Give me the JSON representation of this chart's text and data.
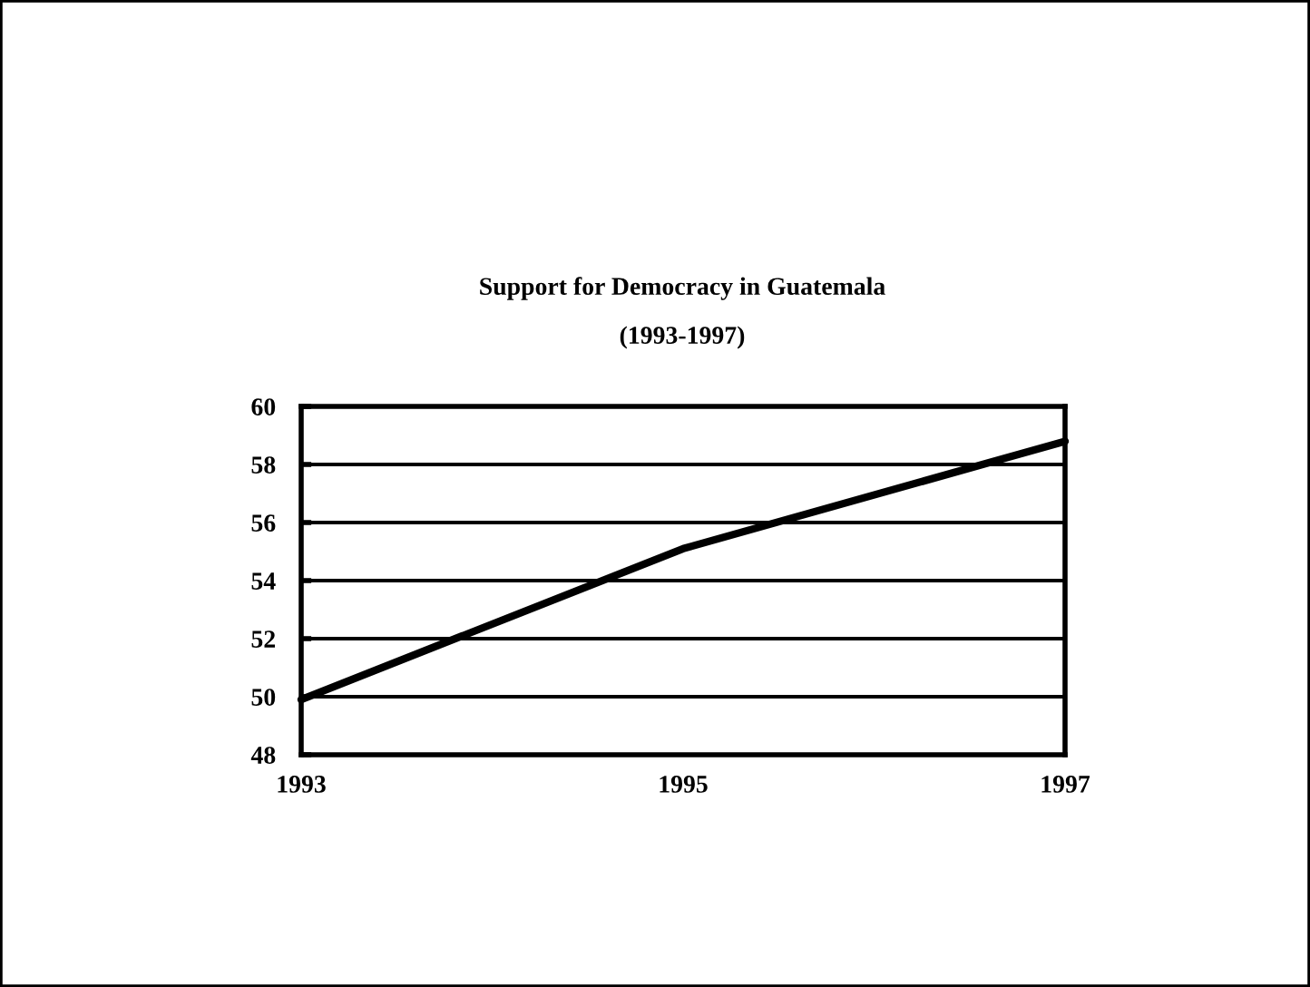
{
  "chart_data": {
    "type": "line",
    "title": "Support for Democracy in Guatemala",
    "subtitle": "(1993-1997)",
    "x": [
      1993,
      1995,
      1997
    ],
    "series": [
      {
        "color": "#000000",
        "values": [
          49.9,
          55.1,
          58.8
        ]
      }
    ],
    "xlim": [
      1993,
      1997
    ],
    "xticks": [
      1993,
      1995,
      1997
    ],
    "ylim": [
      48,
      60
    ],
    "yticks": [
      48,
      50,
      52,
      54,
      56,
      58,
      60
    ],
    "grid": "y",
    "marker": "none",
    "line_style": "solid"
  }
}
